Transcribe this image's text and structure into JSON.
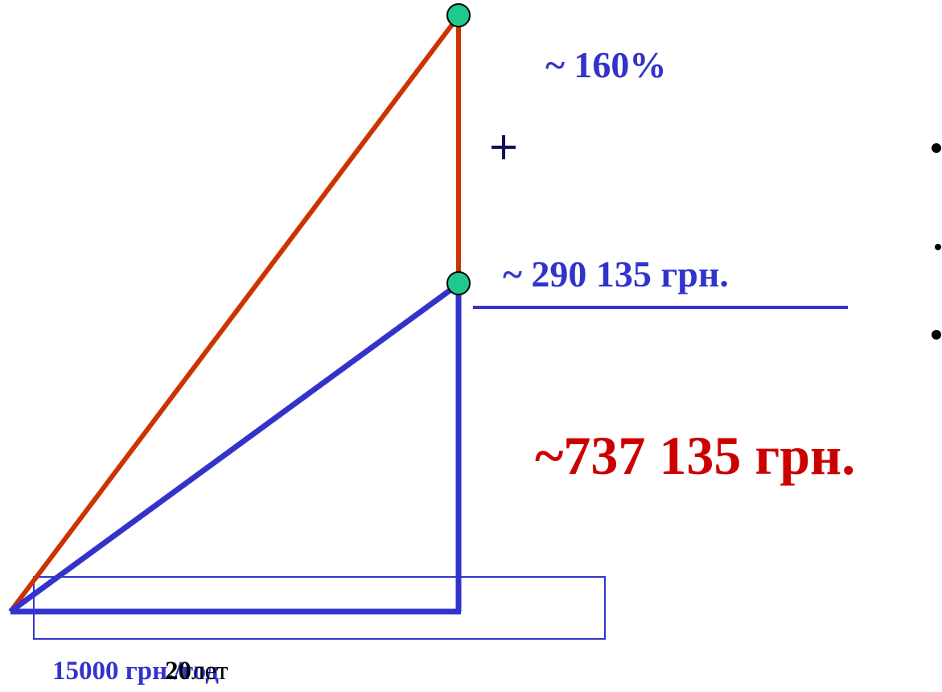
{
  "colors": {
    "blue": "#3333cc",
    "red": "#cc3300",
    "total_red": "#cc0000",
    "node_green": "#1fc98e",
    "dark_navy": "#12125a"
  },
  "labels": {
    "growth_percent": "~ 160%",
    "accumulated_sum": "~ 290 135 грн.",
    "total_sum": "~737 135 грн.",
    "annual_contribution": "15000 грн./год",
    "years_value": "20",
    "years_unit": "лет"
  },
  "icons": {
    "plus": "plus-icon",
    "bullet": "bullet-icon"
  }
}
